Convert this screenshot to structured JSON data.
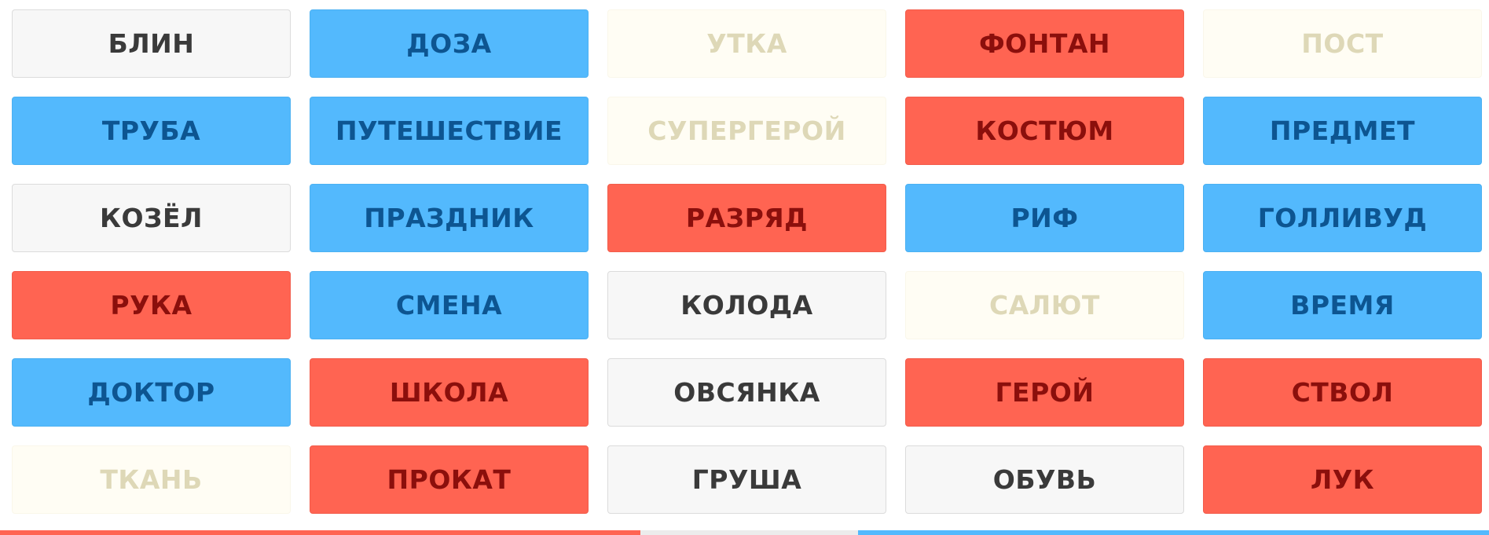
{
  "board": {
    "cards": [
      {
        "word": "БЛИН",
        "type": "neutral"
      },
      {
        "word": "ДОЗА",
        "type": "blue"
      },
      {
        "word": "УТКА",
        "type": "assassin"
      },
      {
        "word": "ФОНТАН",
        "type": "red"
      },
      {
        "word": "ПОСТ",
        "type": "assassin"
      },
      {
        "word": "ТРУБА",
        "type": "blue"
      },
      {
        "word": "ПУТЕШЕСТВИЕ",
        "type": "blue"
      },
      {
        "word": "СУПЕРГЕРОЙ",
        "type": "assassin"
      },
      {
        "word": "КОСТЮМ",
        "type": "red"
      },
      {
        "word": "ПРЕДМЕТ",
        "type": "blue"
      },
      {
        "word": "КОЗЁЛ",
        "type": "neutral"
      },
      {
        "word": "ПРАЗДНИК",
        "type": "blue"
      },
      {
        "word": "РАЗРЯД",
        "type": "red"
      },
      {
        "word": "РИФ",
        "type": "blue"
      },
      {
        "word": "ГОЛЛИВУД",
        "type": "blue"
      },
      {
        "word": "РУКА",
        "type": "red"
      },
      {
        "word": "СМЕНА",
        "type": "blue"
      },
      {
        "word": "КОЛОДА",
        "type": "neutral"
      },
      {
        "word": "САЛЮТ",
        "type": "assassin"
      },
      {
        "word": "ВРЕМЯ",
        "type": "blue"
      },
      {
        "word": "ДОКТОР",
        "type": "blue"
      },
      {
        "word": "ШКОЛА",
        "type": "red"
      },
      {
        "word": "ОВСЯНКА",
        "type": "neutral"
      },
      {
        "word": "ГЕРОЙ",
        "type": "red"
      },
      {
        "word": "СТВОЛ",
        "type": "red"
      },
      {
        "word": "ТКАНЬ",
        "type": "assassin"
      },
      {
        "word": "ПРОКАТ",
        "type": "red"
      },
      {
        "word": "ГРУША",
        "type": "neutral"
      },
      {
        "word": "ОБУВЬ",
        "type": "neutral"
      },
      {
        "word": "ЛУК",
        "type": "red"
      }
    ]
  },
  "colors": {
    "red": "#ff6452",
    "blue": "#53b9fd",
    "neutral": "#f7f7f7",
    "assassin": "#fffdf4"
  },
  "score_bar": {
    "red_fraction": 0.43,
    "neutral_fraction": 0.146,
    "blue_fraction": 0.424
  }
}
